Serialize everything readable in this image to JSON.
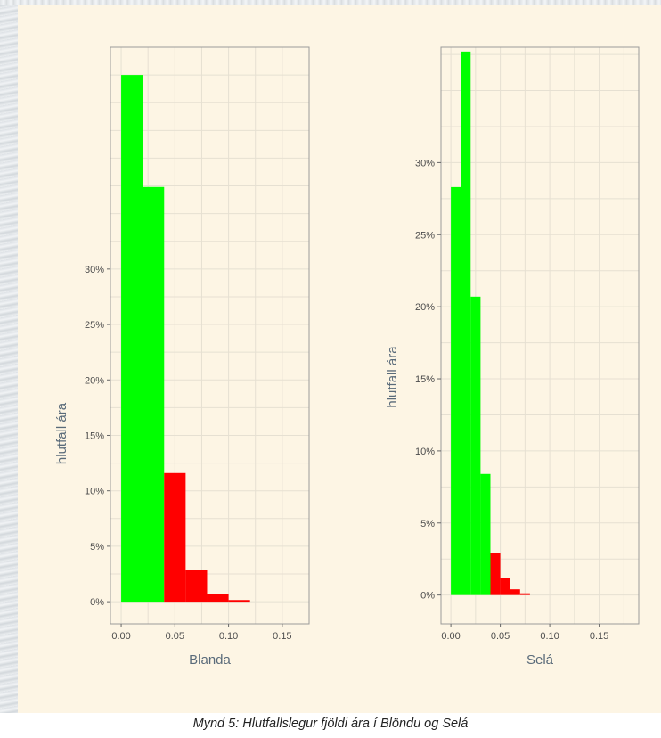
{
  "caption": "Mynd 5: Hlutfallslegur fjöldi ára í Blöndu og Selá",
  "colors": {
    "panel_bg": "#fdf5e4",
    "green": "#00ff00",
    "red": "#ff0000",
    "grid": "#e6e0d2",
    "border": "#9a9a9a"
  },
  "chart_data": [
    {
      "type": "bar",
      "subtype": "histogram",
      "xlabel": "Blanda",
      "ylabel": "hlutfall ára",
      "xlim": [
        -0.01,
        0.175
      ],
      "ylim": [
        -0.02,
        0.5
      ],
      "x_ticks": [
        0.0,
        0.05,
        0.1,
        0.15
      ],
      "x_tick_labels": [
        "0.00",
        "0.05",
        "0.10",
        "0.15"
      ],
      "y_ticks": [
        0,
        0.05,
        0.1,
        0.15,
        0.2,
        0.25,
        0.3
      ],
      "y_tick_labels": [
        "0%",
        "5%",
        "10%",
        "15%",
        "20%",
        "25%",
        "30%"
      ],
      "grid": true,
      "bins": [
        {
          "x0": 0.0,
          "x1": 0.02,
          "value": 0.475,
          "color": "green"
        },
        {
          "x0": 0.02,
          "x1": 0.04,
          "value": 0.374,
          "color": "green"
        },
        {
          "x0": 0.04,
          "x1": 0.06,
          "value": 0.116,
          "color": "red"
        },
        {
          "x0": 0.06,
          "x1": 0.08,
          "value": 0.029,
          "color": "red"
        },
        {
          "x0": 0.08,
          "x1": 0.1,
          "value": 0.007,
          "color": "red"
        },
        {
          "x0": 0.1,
          "x1": 0.12,
          "value": 0.0015,
          "color": "red"
        }
      ]
    },
    {
      "type": "bar",
      "subtype": "histogram",
      "xlabel": "Selá",
      "ylabel": "hlutfall ára",
      "xlim": [
        -0.01,
        0.19
      ],
      "ylim": [
        -0.02,
        0.38
      ],
      "x_ticks": [
        0.0,
        0.05,
        0.1,
        0.15
      ],
      "x_tick_labels": [
        "0.00",
        "0.05",
        "0.10",
        "0.15"
      ],
      "y_ticks": [
        0,
        0.05,
        0.1,
        0.15,
        0.2,
        0.25,
        0.3
      ],
      "y_tick_labels": [
        "0%",
        "5%",
        "10%",
        "15%",
        "20%",
        "25%",
        "30%"
      ],
      "grid": true,
      "bins": [
        {
          "x0": 0.0,
          "x1": 0.01,
          "value": 0.283,
          "color": "green"
        },
        {
          "x0": 0.01,
          "x1": 0.02,
          "value": 0.377,
          "color": "green"
        },
        {
          "x0": 0.02,
          "x1": 0.03,
          "value": 0.207,
          "color": "green"
        },
        {
          "x0": 0.03,
          "x1": 0.04,
          "value": 0.084,
          "color": "green"
        },
        {
          "x0": 0.04,
          "x1": 0.05,
          "value": 0.029,
          "color": "red"
        },
        {
          "x0": 0.05,
          "x1": 0.06,
          "value": 0.012,
          "color": "red"
        },
        {
          "x0": 0.06,
          "x1": 0.07,
          "value": 0.004,
          "color": "red"
        },
        {
          "x0": 0.07,
          "x1": 0.08,
          "value": 0.0012,
          "color": "red"
        }
      ]
    }
  ]
}
